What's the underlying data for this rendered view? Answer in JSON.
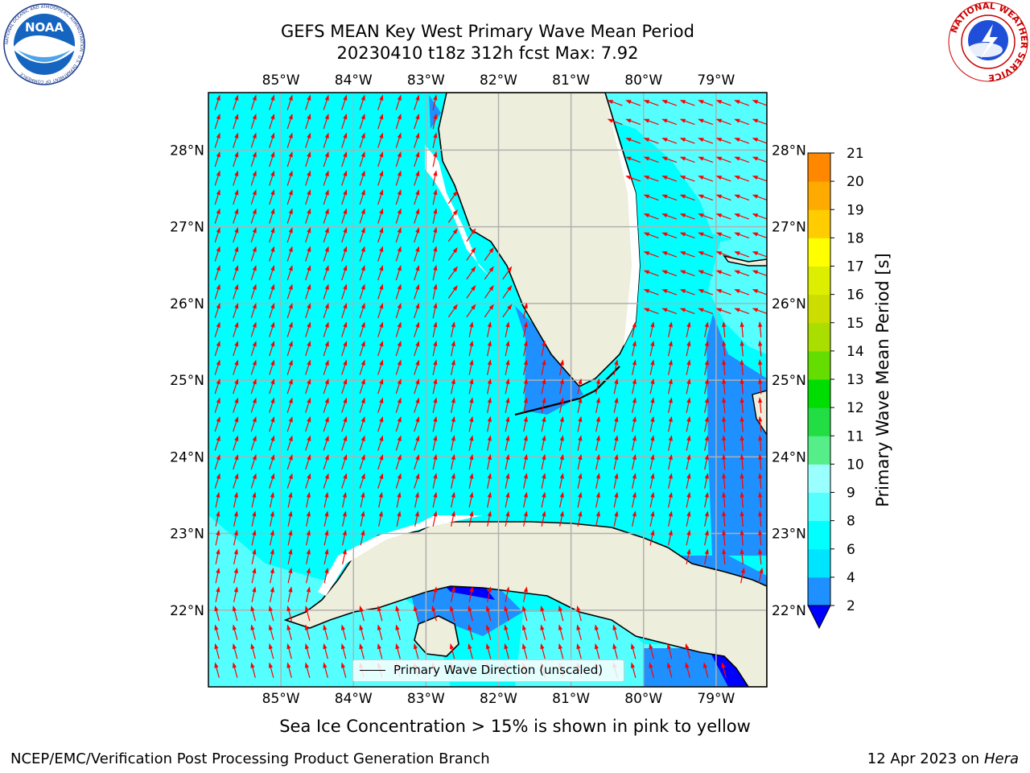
{
  "title": {
    "line1": "GEFS MEAN Key West Primary Wave Mean Period",
    "line2": "20230410 t18z 312h fcst   Max: 7.92"
  },
  "logos": {
    "noaa": {
      "text": "NOAA",
      "ring_text": "NATIONAL OCEANIC AND ATMOSPHERIC ADMINISTRATION · U.S. DEPARTMENT OF COMMERCE"
    },
    "nws": {
      "ring_text": "NATIONAL WEATHER SERVICE"
    }
  },
  "map": {
    "lon_labels": [
      "85°W",
      "84°W",
      "83°W",
      "82°W",
      "81°W",
      "80°W",
      "79°W"
    ],
    "lat_labels": [
      "28°N",
      "27°N",
      "26°N",
      "25°N",
      "24°N",
      "23°N",
      "22°N"
    ],
    "lon_values": [
      -85,
      -84,
      -83,
      -82,
      -81,
      -80,
      -79
    ],
    "lat_values": [
      28,
      27,
      26,
      25,
      24,
      23,
      22
    ],
    "extent": {
      "lon_min": -86.0,
      "lon_max": -78.3,
      "lat_min": 21.0,
      "lat_max": 28.75
    },
    "colors": {
      "land": "#EEEEDC",
      "ocean": "#00FFFF",
      "light": "#55FFFF",
      "blue": "#1E90FF",
      "darkblue": "#0000FF",
      "arrow": "#FF0000",
      "grid": "#B0B0B0"
    },
    "legend": "Primary Wave Direction (unscaled)"
  },
  "colorbar": {
    "label": "Primary Wave Mean Period [s]",
    "ticks": [
      "2",
      "4",
      "6",
      "8",
      "9",
      "10",
      "11",
      "12",
      "13",
      "14",
      "15",
      "16",
      "17",
      "18",
      "19",
      "20",
      "21"
    ],
    "colors": [
      "#1E90FF",
      "#00E5FF",
      "#00FFFF",
      "#55FFFF",
      "#99FFFF",
      "#55EE88",
      "#22DD44",
      "#00DD00",
      "#66DD00",
      "#AADD00",
      "#CCDD00",
      "#DDEE00",
      "#FFFF00",
      "#FFCC00",
      "#FFAA00",
      "#FF8800",
      "#FF5500",
      "#FF2200",
      "#FF0000"
    ],
    "extend_color": "#0000FF"
  },
  "subtitle": "Sea Ice Concentration > 15% is shown in pink to yellow",
  "footer": {
    "left": "NCEP/EMC/Verification Post Processing Product Generation Branch",
    "right_date": "12 Apr 2023 on ",
    "right_host": "Hera"
  }
}
